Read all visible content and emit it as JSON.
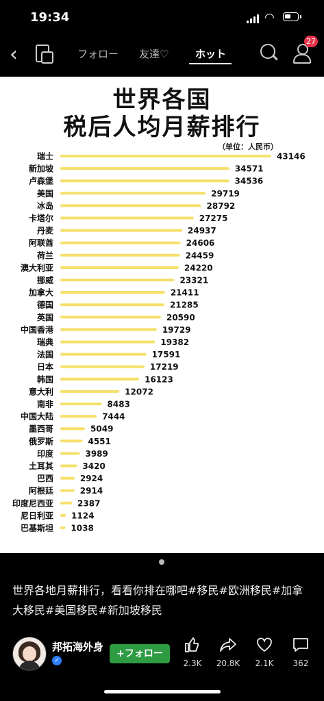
{
  "status_bar": {
    "time": "19:34"
  },
  "nav": {
    "tabs": [
      {
        "label": "フォロー",
        "active": false
      },
      {
        "label": "友達♡",
        "active": false
      },
      {
        "label": "ホット",
        "active": true
      }
    ],
    "notification_count": "27"
  },
  "content_image": {
    "title_line1": "世界各国",
    "title_line2": "税后人均月薪排行",
    "unit": "（单位：人民币）"
  },
  "chart_data": {
    "type": "bar",
    "orientation": "horizontal",
    "title": "世界各国税后人均月薪排行",
    "unit": "（单位：人民币）",
    "bar_color": "#f5e06a",
    "categories": [
      "瑞士",
      "新加坡",
      "卢森堡",
      "美国",
      "冰岛",
      "卡塔尔",
      "丹麦",
      "阿联酋",
      "荷兰",
      "澳大利亚",
      "挪威",
      "加拿大",
      "德国",
      "英国",
      "中国香港",
      "瑞典",
      "法国",
      "日本",
      "韩国",
      "意大利",
      "南非",
      "中国大陆",
      "墨西哥",
      "俄罗斯",
      "印度",
      "土耳其",
      "巴西",
      "阿根廷",
      "印度尼西亚",
      "尼日利亚",
      "巴基斯坦"
    ],
    "values": [
      43146,
      34571,
      34536,
      29719,
      28792,
      27275,
      24937,
      24606,
      24459,
      24220,
      23321,
      21411,
      21285,
      20590,
      19729,
      19382,
      17591,
      17219,
      16123,
      12072,
      8483,
      7444,
      5049,
      4551,
      3989,
      3420,
      2924,
      2914,
      2387,
      1124,
      1038
    ],
    "value_labels": [
      "43146",
      "34571",
      "34536",
      "29719",
      "28792",
      "27275",
      "24937",
      "24606",
      "24459",
      "24220",
      "23321",
      "21411",
      "21285",
      "20590",
      "19729",
      "19382",
      "17591",
      "17219",
      "16123",
      "12072",
      "8483",
      "7444",
      "5049",
      "4551",
      "3989",
      "3420",
      "2924",
      "2914",
      "2387",
      "1124",
      "1038"
    ]
  },
  "post": {
    "caption": "世界各地月薪排行，看看你排在哪吧#移民#欧洲移民#加拿大移民#美国移民#新加坡移民",
    "username": "邦拓海外身",
    "follow_label": "+フォロー",
    "actions": [
      {
        "name": "like",
        "icon": "thumbs-up-icon",
        "count": "2.3K"
      },
      {
        "name": "share",
        "icon": "share-arrow-icon",
        "count": "20.8K"
      },
      {
        "name": "favorite",
        "icon": "heart-icon",
        "count": "2.1K"
      },
      {
        "name": "comment",
        "icon": "comment-icon",
        "count": "362"
      }
    ]
  }
}
